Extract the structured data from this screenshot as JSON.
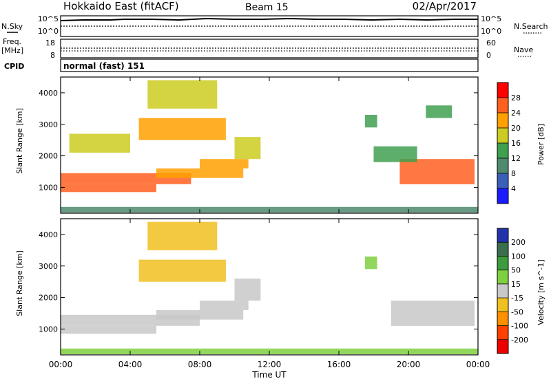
{
  "header": {
    "title": "Hokkaido East (fitACF)",
    "beam": "Beam 15",
    "date": "02/Apr/2017"
  },
  "noise_panel": {
    "left_label": "N.Sky",
    "right_label": "N.Search",
    "left_ticks": [
      "10^5",
      "10^0"
    ],
    "right_ticks": [
      "10^5",
      "10^0"
    ]
  },
  "freq_panel": {
    "left_label_1": "Freq.",
    "left_label_2": "[MHz]",
    "right_label": "Nave",
    "left_ticks": [
      "18",
      "8"
    ],
    "right_ticks": [
      "60",
      "0"
    ]
  },
  "cpid_panel": {
    "label": "CPID",
    "value": "normal (fast) 151"
  },
  "power_panel": {
    "ylabel": "Slant Range [km]",
    "yticks": [
      "1000",
      "2000",
      "3000",
      "4000"
    ],
    "colorbar_label": "Power [dB]",
    "colorbar_ticks": [
      "4",
      "8",
      "12",
      "16",
      "20",
      "24",
      "28"
    ],
    "colors": [
      "#1a1aff",
      "#3a5fb8",
      "#4f8a6e",
      "#3fa050",
      "#cccc22",
      "#ffa000",
      "#ff6020",
      "#ff0000"
    ]
  },
  "velocity_panel": {
    "ylabel": "Slant Range [km]",
    "yticks": [
      "1000",
      "2000",
      "3000",
      "4000"
    ],
    "colorbar_label": "Velocity [m s^-1]",
    "colorbar_ticks": [
      "200",
      "100",
      "50",
      "15",
      "-15",
      "-50",
      "-100",
      "-200"
    ],
    "colors": [
      "#2233aa",
      "#3a6e4e",
      "#3d9b3d",
      "#7fd040",
      "#c8c8c8",
      "#f0c020",
      "#ff9000",
      "#ff4000",
      "#ee0000"
    ]
  },
  "x_axis": {
    "label": "Time UT",
    "ticks": [
      "00:00",
      "04:00",
      "08:00",
      "12:00",
      "16:00",
      "20:00",
      "00:00"
    ]
  },
  "chart_data": [
    {
      "type": "heatmap",
      "title": "Power",
      "xlabel": "Time UT",
      "ylabel": "Slant Range [km]",
      "xlim": [
        0,
        24
      ],
      "ylim": [
        180,
        4500
      ],
      "colorbar": {
        "label": "Power [dB]",
        "range": [
          0,
          32
        ]
      },
      "regions": [
        {
          "t0": 0.0,
          "t1": 7.5,
          "r0": 1100,
          "r1": 1450,
          "power": 26
        },
        {
          "t0": 0.0,
          "t1": 5.5,
          "r0": 850,
          "r1": 1100,
          "power": 24
        },
        {
          "t0": 5.5,
          "t1": 10.5,
          "r0": 1300,
          "r1": 1600,
          "power": 22
        },
        {
          "t0": 8.0,
          "t1": 10.8,
          "r0": 1600,
          "r1": 1900,
          "power": 20
        },
        {
          "t0": 10.0,
          "t1": 11.5,
          "r0": 1900,
          "r1": 2600,
          "power": 18
        },
        {
          "t0": 4.5,
          "t1": 9.5,
          "r0": 2500,
          "r1": 3200,
          "power": 20
        },
        {
          "t0": 0.5,
          "t1": 4.0,
          "r0": 2100,
          "r1": 2700,
          "power": 16
        },
        {
          "t0": 5.0,
          "t1": 9.0,
          "r0": 3500,
          "r1": 4400,
          "power": 18
        },
        {
          "t0": 19.5,
          "t1": 23.8,
          "r0": 1100,
          "r1": 1900,
          "power": 24
        },
        {
          "t0": 18.0,
          "t1": 20.5,
          "r0": 1800,
          "r1": 2300,
          "power": 14
        },
        {
          "t0": 17.5,
          "t1": 18.2,
          "r0": 2900,
          "r1": 3300,
          "power": 12
        },
        {
          "t0": 21.0,
          "t1": 22.5,
          "r0": 3200,
          "r1": 3600,
          "power": 14
        },
        {
          "t0": 0.0,
          "t1": 24.0,
          "r0": 200,
          "r1": 380,
          "power": 10
        }
      ]
    },
    {
      "type": "heatmap",
      "title": "Velocity",
      "xlabel": "Time UT",
      "ylabel": "Slant Range [km]",
      "xlim": [
        0,
        24
      ],
      "ylim": [
        180,
        4500
      ],
      "colorbar": {
        "label": "Velocity [m s^-1]",
        "range": [
          -250,
          250
        ]
      },
      "regions": [
        {
          "t0": 0.0,
          "t1": 8.0,
          "r0": 1100,
          "r1": 1450,
          "velocity": 0
        },
        {
          "t0": 0.0,
          "t1": 5.5,
          "r0": 850,
          "r1": 1100,
          "velocity": 0
        },
        {
          "t0": 5.5,
          "t1": 10.5,
          "r0": 1300,
          "r1": 1600,
          "velocity": -20
        },
        {
          "t0": 8.0,
          "t1": 10.8,
          "r0": 1600,
          "r1": 1900,
          "velocity": 0
        },
        {
          "t0": 10.0,
          "t1": 11.5,
          "r0": 1900,
          "r1": 2600,
          "velocity": 0
        },
        {
          "t0": 4.5,
          "t1": 9.5,
          "r0": 2500,
          "r1": 3200,
          "velocity": -30
        },
        {
          "t0": 5.0,
          "t1": 9.0,
          "r0": 3500,
          "r1": 4400,
          "velocity": -40
        },
        {
          "t0": 19.0,
          "t1": 23.8,
          "r0": 1100,
          "r1": 1900,
          "velocity": 0
        },
        {
          "t0": 17.5,
          "t1": 18.2,
          "r0": 2900,
          "r1": 3300,
          "velocity": 60
        },
        {
          "t0": 0.0,
          "t1": 24.0,
          "r0": 200,
          "r1": 380,
          "velocity": 30
        }
      ]
    }
  ]
}
